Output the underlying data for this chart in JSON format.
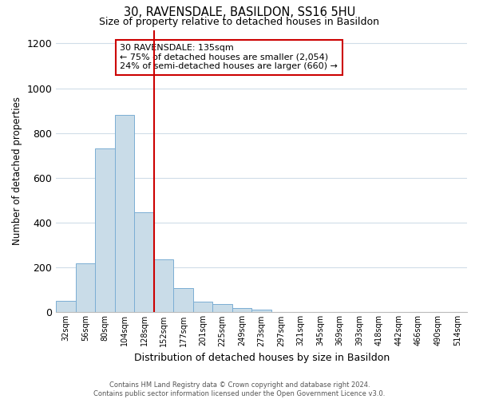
{
  "title": "30, RAVENSDALE, BASILDON, SS16 5HU",
  "subtitle": "Size of property relative to detached houses in Basildon",
  "xlabel": "Distribution of detached houses by size in Basildon",
  "ylabel": "Number of detached properties",
  "bar_labels": [
    "32sqm",
    "56sqm",
    "80sqm",
    "104sqm",
    "128sqm",
    "152sqm",
    "177sqm",
    "201sqm",
    "225sqm",
    "249sqm",
    "273sqm",
    "297sqm",
    "321sqm",
    "345sqm",
    "369sqm",
    "393sqm",
    "418sqm",
    "442sqm",
    "466sqm",
    "490sqm",
    "514sqm"
  ],
  "bar_values": [
    52,
    218,
    730,
    880,
    445,
    235,
    107,
    48,
    38,
    20,
    12,
    0,
    0,
    0,
    0,
    0,
    0,
    0,
    0,
    0,
    0
  ],
  "bar_color": "#c9dce8",
  "bar_edgecolor": "#7baed4",
  "ylim": [
    0,
    1260
  ],
  "yticks": [
    0,
    200,
    400,
    600,
    800,
    1000,
    1200
  ],
  "vline_x_index": 4,
  "vline_color": "#cc0000",
  "annotation_title": "30 RAVENSDALE: 135sqm",
  "annotation_line1": "← 75% of detached houses are smaller (2,054)",
  "annotation_line2": "24% of semi-detached houses are larger (660) →",
  "annotation_box_edgecolor": "#cc0000",
  "grid_color": "#d0dde8",
  "background_color": "#ffffff",
  "footer_line1": "Contains HM Land Registry data © Crown copyright and database right 2024.",
  "footer_line2": "Contains public sector information licensed under the Open Government Licence v3.0."
}
